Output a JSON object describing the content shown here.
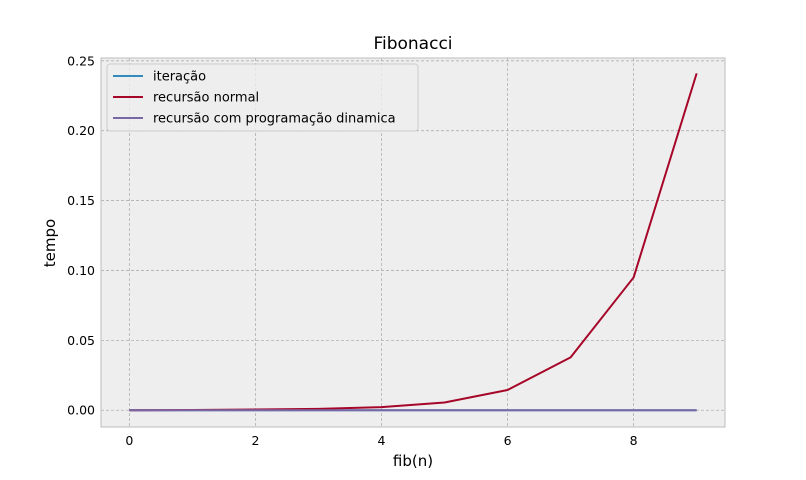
{
  "chart_data": {
    "type": "line",
    "title": "Fibonacci",
    "xlabel": "fib(n)",
    "ylabel": "tempo",
    "xlim": [
      -0.45,
      9.45
    ],
    "ylim": [
      -0.012,
      0.252
    ],
    "xticks": [
      0,
      2,
      4,
      6,
      8
    ],
    "xtick_labels": [
      "0",
      "2",
      "4",
      "6",
      "8"
    ],
    "yticks": [
      0.0,
      0.05,
      0.1,
      0.15,
      0.2,
      0.25
    ],
    "ytick_labels": [
      "0.00",
      "0.05",
      "0.10",
      "0.15",
      "0.20",
      "0.25"
    ],
    "grid": true,
    "legend_position": "top-left",
    "x": [
      0,
      1,
      2,
      3,
      4,
      5,
      6,
      7,
      8,
      9
    ],
    "series": [
      {
        "name": "iteração",
        "color": "#348abd",
        "values": [
          0,
          0,
          0,
          0,
          0,
          0,
          0,
          0,
          0,
          0
        ]
      },
      {
        "name": "recursão normal",
        "color": "#a60628",
        "values": [
          0.0,
          0.0002,
          0.0005,
          0.001,
          0.0022,
          0.0055,
          0.0145,
          0.0378,
          0.095,
          0.241
        ]
      },
      {
        "name": "recursão com programação dinamica",
        "color": "#7a68a6",
        "values": [
          0,
          0,
          0,
          0,
          0,
          0,
          0,
          0,
          0,
          0
        ]
      }
    ]
  }
}
